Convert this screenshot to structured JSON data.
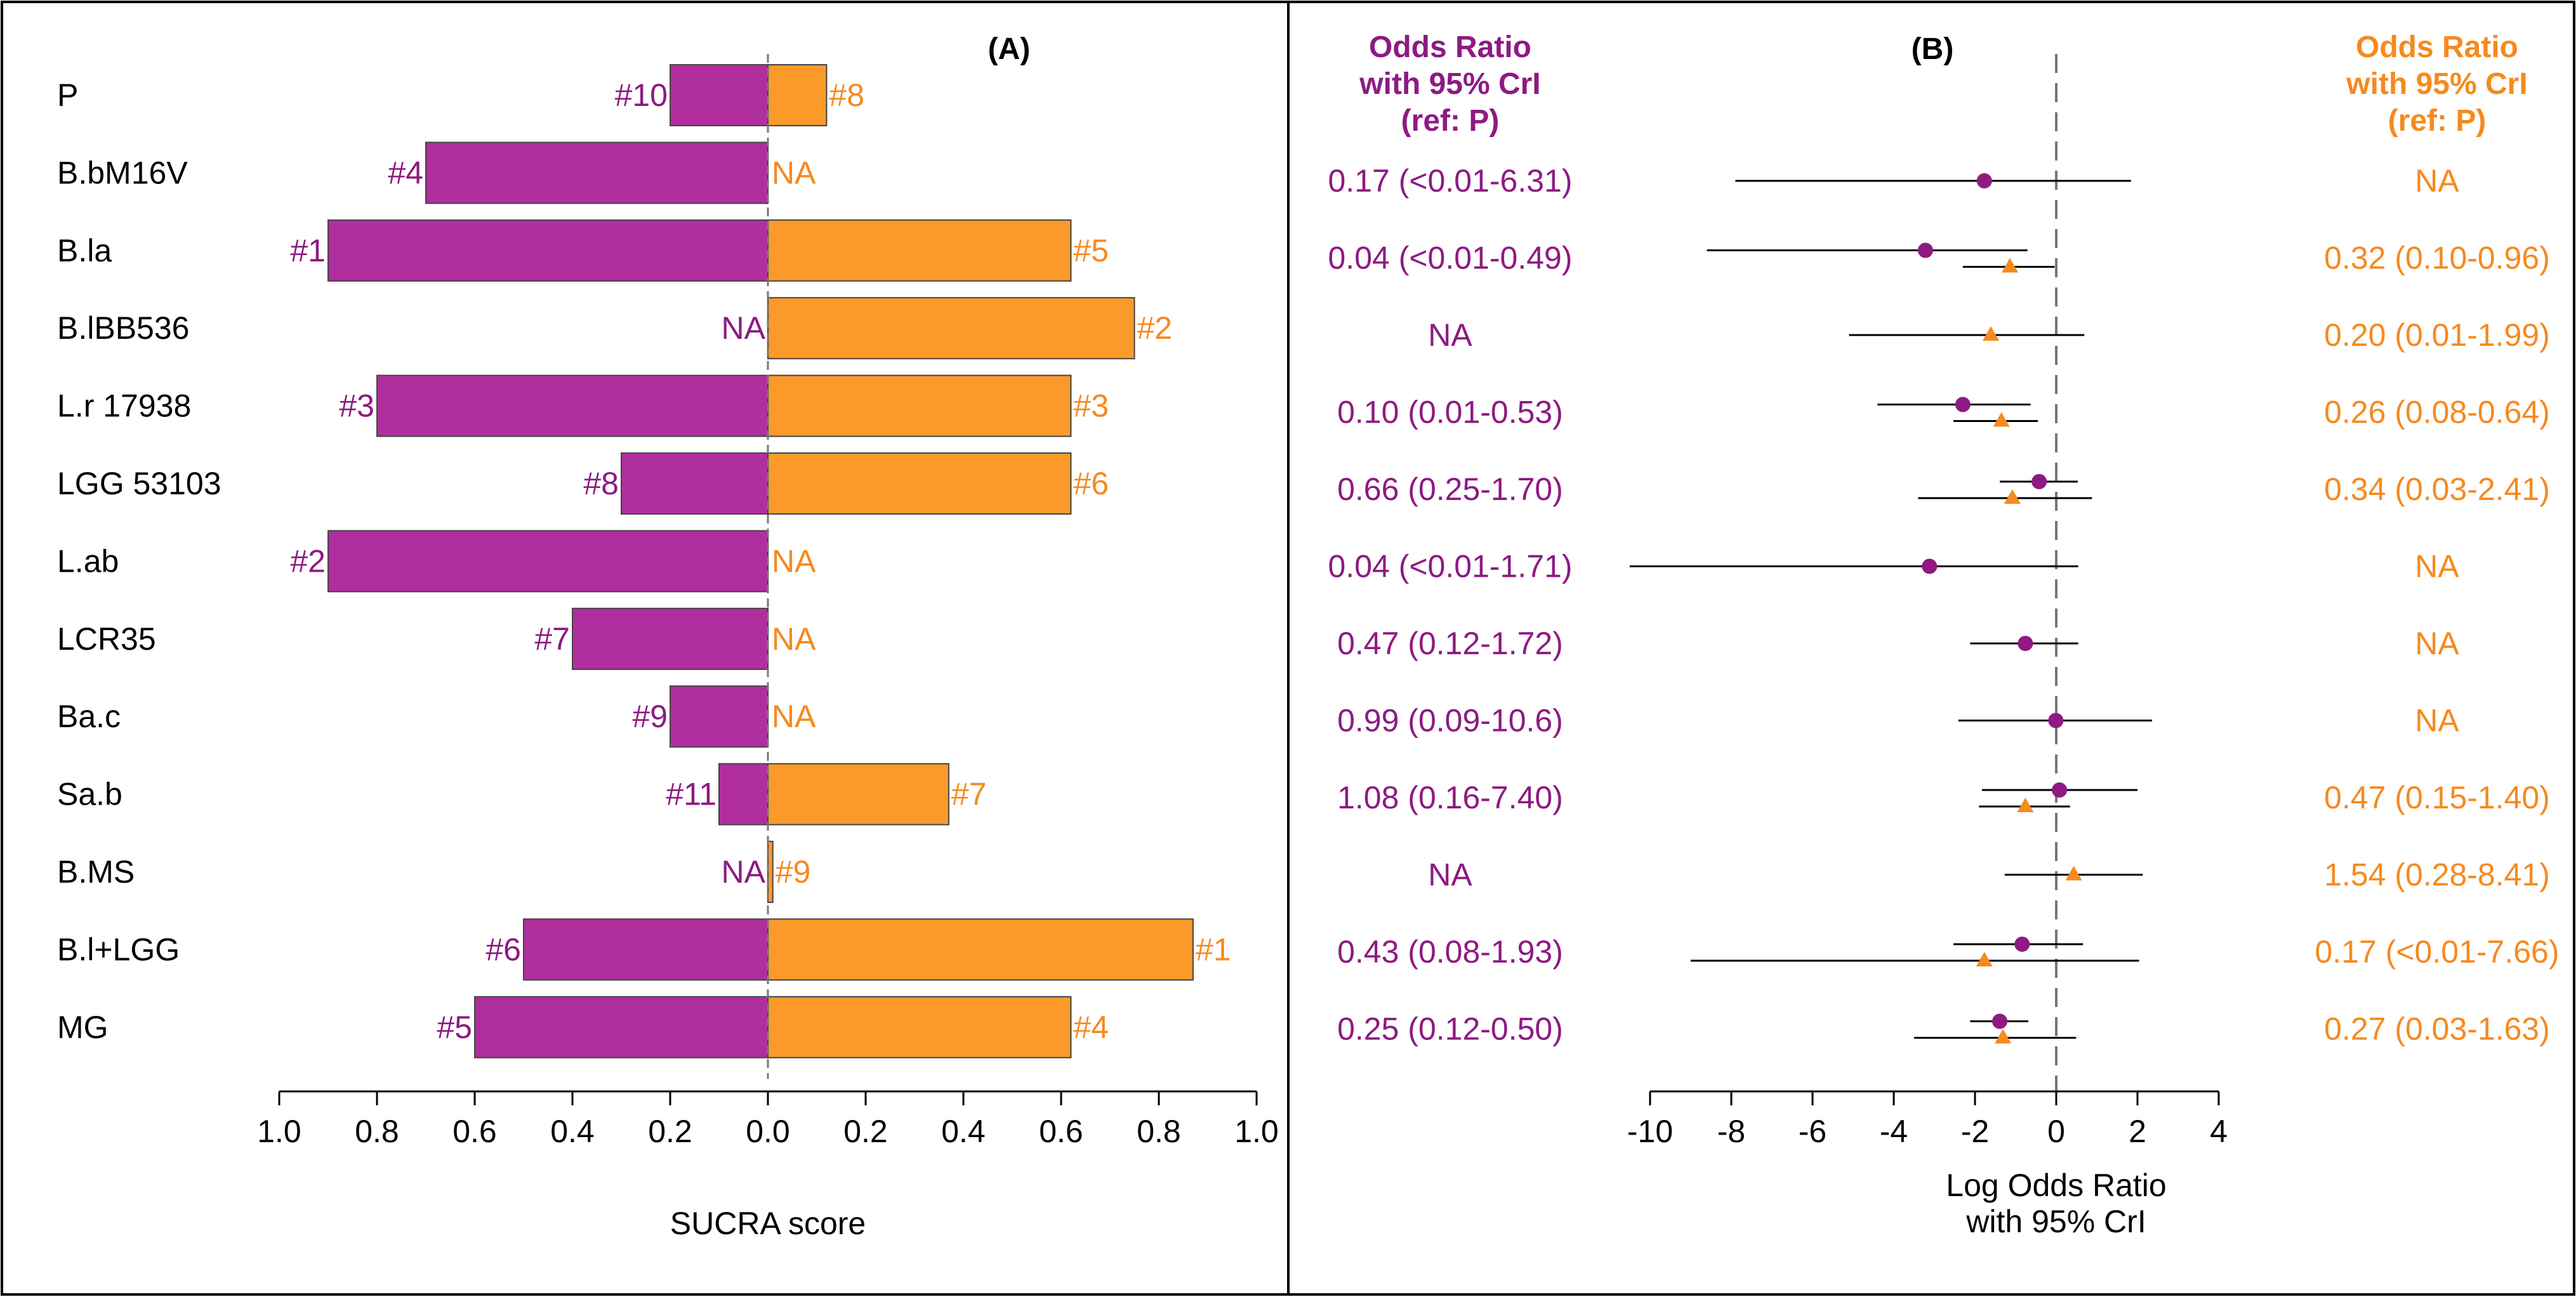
{
  "chart_data": [
    {
      "panel": "(A)",
      "type": "bar",
      "orientation": "horizontal-diverging",
      "xlabel": "SUCRA score",
      "categories": [
        "P",
        "B.bM16V",
        "B.la",
        "B.lBB536",
        "L.r 17938",
        "LGG 53103",
        "L.ab",
        "LCR35",
        "Ba.c",
        "Sa.b",
        "B.MS",
        "B.l+LGG",
        "MG"
      ],
      "series": [
        {
          "name": "left (purple)",
          "direction": "left",
          "color": "#b12e9f",
          "values": [
            0.2,
            0.7,
            0.9,
            null,
            0.8,
            0.3,
            0.9,
            0.4,
            0.2,
            0.1,
            null,
            0.5,
            0.6
          ],
          "labels": [
            "#10",
            "#4",
            "#1",
            "NA",
            "#3",
            "#8",
            "#2",
            "#7",
            "#9",
            "#11",
            "NA",
            "#6",
            "#5"
          ]
        },
        {
          "name": "right (orange)",
          "direction": "right",
          "color": "#fb9a29",
          "values": [
            0.12,
            null,
            0.62,
            0.75,
            0.62,
            0.62,
            null,
            null,
            null,
            0.37,
            0.01,
            0.87,
            0.62
          ],
          "labels": [
            "#8",
            "NA",
            "#5",
            "#2",
            "#3",
            "#6",
            "NA",
            "NA",
            "NA",
            "#7",
            "#9",
            "#1",
            "#4"
          ]
        }
      ],
      "xticks": [
        "1.0",
        "0.8",
        "0.6",
        "0.4",
        "0.2",
        "0.0",
        "0.2",
        "0.4",
        "0.6",
        "0.8",
        "1.0"
      ],
      "xlim": [
        -1.0,
        1.0
      ]
    },
    {
      "panel": "(B)",
      "type": "scatter",
      "subtype": "forest",
      "xlabel_line1": "Log Odds Ratio",
      "xlabel_line2": "with 95% CrI",
      "xlim": [
        -10,
        4
      ],
      "xticks": [
        "-10",
        "-8",
        "-6",
        "-4",
        "-2",
        "0",
        "2",
        "4"
      ],
      "reference_line": 0,
      "left_header": [
        "Odds Ratio",
        "with 95% CrI",
        "(ref: P)"
      ],
      "right_header": [
        "Odds Ratio",
        "with 95% CrI",
        "(ref: P)"
      ],
      "left_or_labels": [
        "0.17 (<0.01-6.31)",
        "0.04 (<0.01-0.49)",
        "NA",
        "0.10 (0.01-0.53)",
        "0.66 (0.25-1.70)",
        "0.04 (<0.01-1.71)",
        "0.47 (0.12-1.72)",
        "0.99 (0.09-10.6)",
        "1.08 (0.16-7.40)",
        "NA",
        "0.43 (0.08-1.93)",
        "0.25 (0.12-0.50)"
      ],
      "right_or_labels": [
        "NA",
        "0.32 (0.10-0.96)",
        "0.20 (0.01-1.99)",
        "0.26 (0.08-0.64)",
        "0.34 (0.03-2.41)",
        "NA",
        "NA",
        "NA",
        "0.47 (0.15-1.40)",
        "1.54 (0.28-8.41)",
        "0.17 (<0.01-7.66)",
        "0.27 (0.03-1.63)"
      ],
      "series": [
        {
          "name": "purple (circle)",
          "marker": "circle",
          "color": "#8e1a82",
          "points": [
            {
              "est": -1.77,
              "lo": -7.9,
              "hi": 1.84
            },
            {
              "est": -3.22,
              "lo": -8.6,
              "hi": -0.71
            },
            null,
            {
              "est": -2.3,
              "lo": -4.4,
              "hi": -0.63
            },
            {
              "est": -0.42,
              "lo": -1.39,
              "hi": 0.53
            },
            {
              "est": -3.12,
              "lo": -10.5,
              "hi": 0.54
            },
            {
              "est": -0.76,
              "lo": -2.12,
              "hi": 0.54
            },
            {
              "est": -0.01,
              "lo": -2.41,
              "hi": 2.36
            },
            {
              "est": 0.08,
              "lo": -1.83,
              "hi": 2.0
            },
            null,
            {
              "est": -0.84,
              "lo": -2.53,
              "hi": 0.66
            },
            {
              "est": -1.39,
              "lo": -2.12,
              "hi": -0.69
            }
          ]
        },
        {
          "name": "orange (triangle)",
          "marker": "triangle",
          "color": "#f58a1f",
          "points": [
            null,
            {
              "est": -1.14,
              "lo": -2.3,
              "hi": -0.04
            },
            {
              "est": -1.61,
              "lo": -5.1,
              "hi": 0.69
            },
            {
              "est": -1.35,
              "lo": -2.53,
              "hi": -0.45
            },
            {
              "est": -1.08,
              "lo": -3.4,
              "hi": 0.88
            },
            null,
            null,
            null,
            {
              "est": -0.76,
              "lo": -1.9,
              "hi": 0.34
            },
            {
              "est": 0.43,
              "lo": -1.27,
              "hi": 2.13
            },
            {
              "est": -1.77,
              "lo": -9.0,
              "hi": 2.04
            },
            {
              "est": -1.31,
              "lo": -3.5,
              "hi": 0.49
            }
          ]
        }
      ]
    }
  ]
}
